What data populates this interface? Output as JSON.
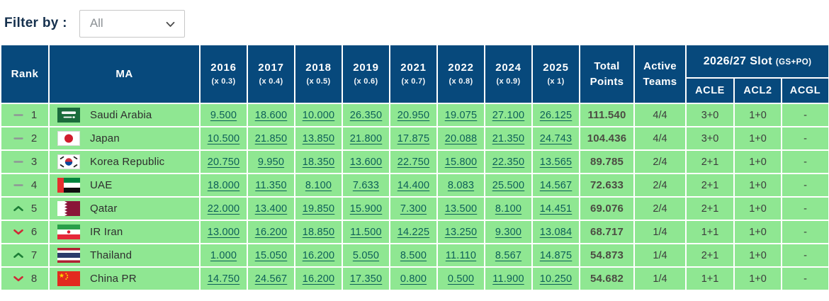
{
  "filter": {
    "label": "Filter by :",
    "selected": "All",
    "options": [
      "All"
    ]
  },
  "colors": {
    "header_bg": "#07497c",
    "row_bg": "#8fe792",
    "link_text": "#0d5f58",
    "rank_up": "#1d7d36",
    "rank_down": "#ce2a36",
    "rank_same": "#8f9596"
  },
  "table": {
    "headers": {
      "rank": "Rank",
      "ma": "MA",
      "years": [
        {
          "year": "2016",
          "multiplier": "(x 0.3)"
        },
        {
          "year": "2017",
          "multiplier": "(x 0.4)"
        },
        {
          "year": "2018",
          "multiplier": "(x 0.5)"
        },
        {
          "year": "2019",
          "multiplier": "(x 0.6)"
        },
        {
          "year": "2021",
          "multiplier": "(x 0.7)"
        },
        {
          "year": "2022",
          "multiplier": "(x 0.8)"
        },
        {
          "year": "2024",
          "multiplier": "(x 0.9)"
        },
        {
          "year": "2025",
          "multiplier": "(x 1)"
        }
      ],
      "total_line1": "Total",
      "total_line2": "Points",
      "active_line1": "Active",
      "active_line2": "Teams",
      "slot_title": "2026/27 Slot",
      "slot_suffix": "(GS+PO)",
      "slot_columns": [
        "ACLE",
        "ACL2",
        "ACGL"
      ]
    },
    "rows": [
      {
        "movement": "same",
        "rank": "1",
        "flag": "saudi-arabia",
        "country": "Saudi Arabia",
        "points": [
          "9.500",
          "18.600",
          "10.000",
          "26.350",
          "20.950",
          "19.075",
          "27.100",
          "26.125"
        ],
        "total": "111.540",
        "active_teams": "4/4",
        "acle": "3+0",
        "acl2": "1+0",
        "acgl": "-"
      },
      {
        "movement": "same",
        "rank": "2",
        "flag": "japan",
        "country": "Japan",
        "points": [
          "10.500",
          "21.850",
          "13.850",
          "21.800",
          "17.875",
          "20.088",
          "21.350",
          "24.743"
        ],
        "total": "104.436",
        "active_teams": "4/4",
        "acle": "3+0",
        "acl2": "1+0",
        "acgl": "-"
      },
      {
        "movement": "same",
        "rank": "3",
        "flag": "korea-republic",
        "country": "Korea Republic",
        "points": [
          "20.750",
          "9.950",
          "18.350",
          "13.600",
          "22.750",
          "15.800",
          "22.350",
          "13.565"
        ],
        "total": "89.785",
        "active_teams": "2/4",
        "acle": "2+1",
        "acl2": "1+0",
        "acgl": "-"
      },
      {
        "movement": "same",
        "rank": "4",
        "flag": "uae",
        "country": "UAE",
        "points": [
          "18.000",
          "11.350",
          "8.100",
          "7.633",
          "14.400",
          "8.083",
          "25.500",
          "14.567"
        ],
        "total": "72.633",
        "active_teams": "2/4",
        "acle": "2+1",
        "acl2": "1+0",
        "acgl": "-"
      },
      {
        "movement": "up",
        "rank": "5",
        "flag": "qatar",
        "country": "Qatar",
        "points": [
          "22.000",
          "13.400",
          "19.850",
          "15.900",
          "7.300",
          "13.500",
          "8.100",
          "14.451"
        ],
        "total": "69.076",
        "active_teams": "2/4",
        "acle": "2+1",
        "acl2": "1+0",
        "acgl": "-"
      },
      {
        "movement": "down",
        "rank": "6",
        "flag": "ir-iran",
        "country": "IR Iran",
        "points": [
          "13.000",
          "16.200",
          "18.850",
          "11.500",
          "14.225",
          "13.250",
          "9.300",
          "13.084"
        ],
        "total": "68.717",
        "active_teams": "1/4",
        "acle": "1+1",
        "acl2": "1+0",
        "acgl": "-"
      },
      {
        "movement": "up",
        "rank": "7",
        "flag": "thailand",
        "country": "Thailand",
        "points": [
          "1.000",
          "15.050",
          "16.200",
          "5.050",
          "8.500",
          "11.110",
          "8.567",
          "14.875"
        ],
        "total": "54.873",
        "active_teams": "1/4",
        "acle": "2+1",
        "acl2": "1+0",
        "acgl": "-"
      },
      {
        "movement": "down",
        "rank": "8",
        "flag": "china-pr",
        "country": "China PR",
        "points": [
          "14.750",
          "24.567",
          "16.200",
          "17.350",
          "0.800",
          "0.500",
          "11.900",
          "10.250"
        ],
        "total": "54.682",
        "active_teams": "1/4",
        "acle": "1+1",
        "acl2": "1+0",
        "acgl": "-"
      }
    ]
  }
}
